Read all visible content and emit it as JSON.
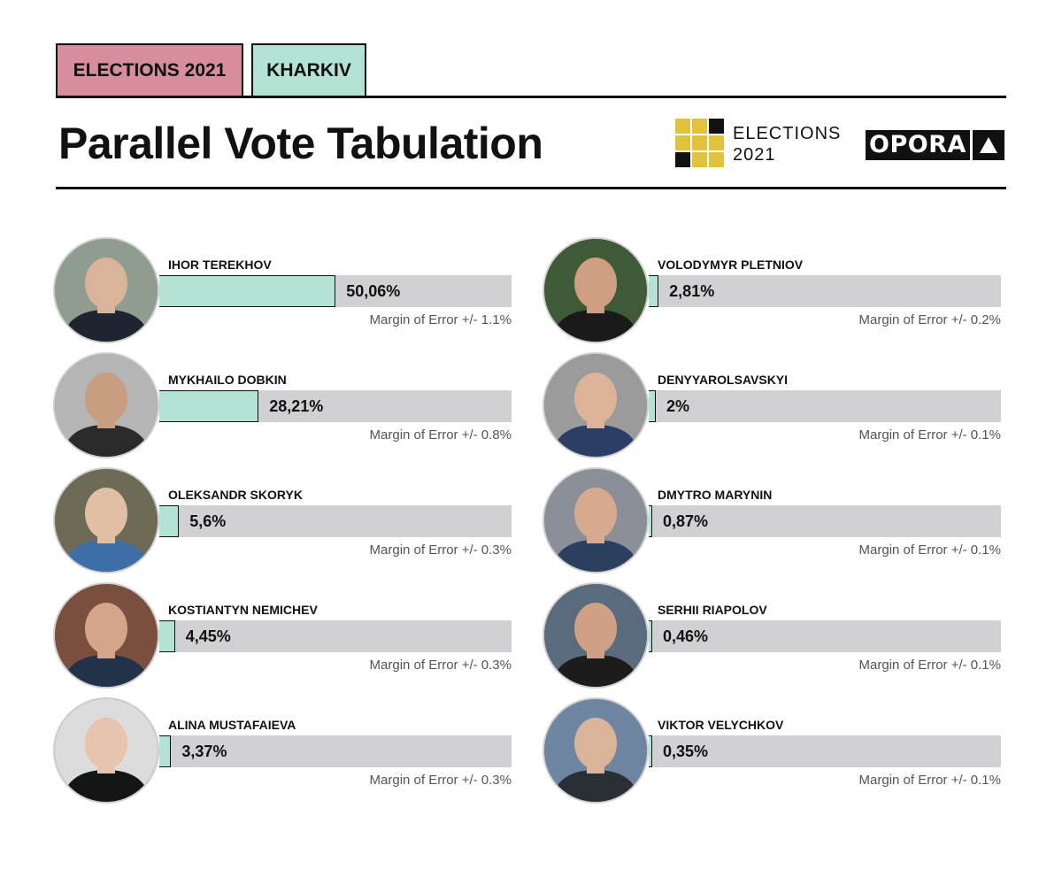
{
  "header": {
    "tag_elections": "ELECTIONS 2021",
    "tag_city": "KHARKIV",
    "title": "Parallel Vote Tabulation",
    "logo_line1": "ELECTIONS",
    "logo_line2": "2021",
    "opora_word": "OPORA"
  },
  "colors": {
    "tag_elections": "#d88d9d",
    "tag_city": "#b4e3d6",
    "bar_fill": "#b4e3d6",
    "bar_track": "#d1d1d3",
    "logo_yellow": "#e2c13c",
    "logo_dark": "#111111"
  },
  "chart_data": {
    "type": "bar",
    "orientation": "horizontal",
    "xlim": [
      0,
      100
    ],
    "unit": "%",
    "categories": [
      "IHOR TEREKHOV",
      "MYKHAILO DOBKIN",
      "OLEKSANDR SKORYK",
      "KOSTIANTYN NEMICHEV",
      "ALINA MUSTAFAIEVA",
      "VOLODYMYR PLETNIOV",
      "DENYYAROLSAVSKYI",
      "DMYTRO MARYNIN",
      "SERHII RIAPOLOV",
      "VIKTOR VELYCHKOV"
    ],
    "values": [
      50.06,
      28.21,
      5.6,
      4.45,
      3.37,
      2.81,
      2.0,
      0.87,
      0.46,
      0.35
    ],
    "candidates": [
      {
        "name": "IHOR TEREKHOV",
        "value": 50.06,
        "label": "50,06%",
        "moe": "Margin of Error  +/- 1.1%"
      },
      {
        "name": "MYKHAILO DOBKIN",
        "value": 28.21,
        "label": "28,21%",
        "moe": "Margin of Error +/- 0.8%"
      },
      {
        "name": "OLEKSANDR SKORYK",
        "value": 5.6,
        "label": "5,6%",
        "moe": "Margin of Error  +/- 0.3%"
      },
      {
        "name": "KOSTIANTYN NEMICHEV",
        "value": 4.45,
        "label": "4,45%",
        "moe": "Margin of Error  +/- 0.3%"
      },
      {
        "name": "ALINA MUSTAFAIEVA",
        "value": 3.37,
        "label": "3,37%",
        "moe": "Margin of Error  +/- 0.3%"
      },
      {
        "name": "VOLODYMYR PLETNIOV",
        "value": 2.81,
        "label": "2,81%",
        "moe": "Margin of Error  +/- 0.2%"
      },
      {
        "name": "DENYYAROLSAVSKYI",
        "value": 2.0,
        "label": "2%",
        "moe": "Margin of Error  +/- 0.1%"
      },
      {
        "name": "DMYTRO MARYNIN",
        "value": 0.87,
        "label": "0,87%",
        "moe": "Margin of Error  +/- 0.1%"
      },
      {
        "name": "SERHII RIAPOLOV",
        "value": 0.46,
        "label": "0,46%",
        "moe": "Margin of Error  +/- 0.1%"
      },
      {
        "name": "VIKTOR VELYCHKOV",
        "value": 0.35,
        "label": "0,35%",
        "moe": "Margin of Error  +/- 0.1%"
      }
    ]
  }
}
